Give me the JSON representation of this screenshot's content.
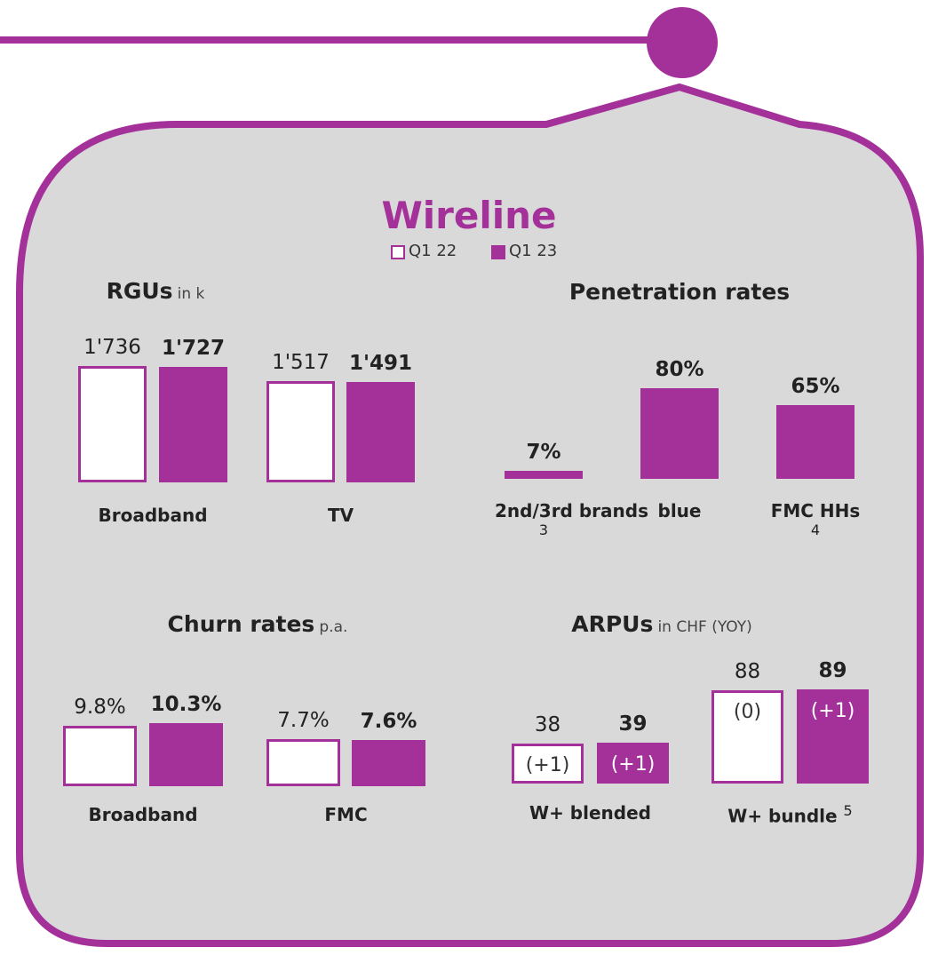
{
  "title": "Wireline",
  "chart_data": [
    {
      "type": "bar",
      "title": "RGUs",
      "subtitle": "in k",
      "categories": [
        "Broadband",
        "TV"
      ],
      "series": [
        {
          "name": "Q1 22",
          "color": "#ffffff",
          "values": [
            1736,
            1517
          ],
          "value_labels": [
            "1'736",
            "1'517"
          ]
        },
        {
          "name": "Q1 23",
          "color": "#a4309a",
          "values": [
            1727,
            1491
          ],
          "value_labels": [
            "1'727",
            "1'491"
          ]
        }
      ]
    },
    {
      "type": "bar",
      "title": "Penetration rates",
      "categories": [
        "2nd/3rd brands",
        "blue",
        "FMC HHs"
      ],
      "footnotes": [
        3,
        null,
        4
      ],
      "series": [
        {
          "color": "#a4309a",
          "values": [
            7,
            80,
            65
          ],
          "value_labels": [
            "7%",
            "80%",
            "65%"
          ]
        }
      ]
    },
    {
      "type": "bar",
      "title": "Churn rates",
      "subtitle": "p.a.",
      "categories": [
        "Broadband",
        "FMC"
      ],
      "series": [
        {
          "color": "#ffffff",
          "values": [
            9.8,
            7.7
          ],
          "value_labels": [
            "9.8%",
            "7.7%"
          ]
        },
        {
          "color": "#a4309a",
          "values": [
            10.3,
            7.6
          ],
          "value_labels": [
            "10.3%",
            "7.6%"
          ]
        }
      ]
    },
    {
      "type": "bar",
      "title": "ARPUs",
      "subtitle": "in CHF (YOY)",
      "categories": [
        "W+ blended",
        "W+ bundle"
      ],
      "footnotes": [
        null,
        5
      ],
      "series": [
        {
          "color": "#ffffff",
          "values": [
            38,
            88
          ],
          "change_labels": [
            "(+1)",
            "(0)"
          ]
        },
        {
          "color": "#a4309a",
          "values": [
            39,
            89
          ],
          "change_labels": [
            "(+1)",
            "(+1)"
          ]
        }
      ]
    }
  ]
}
